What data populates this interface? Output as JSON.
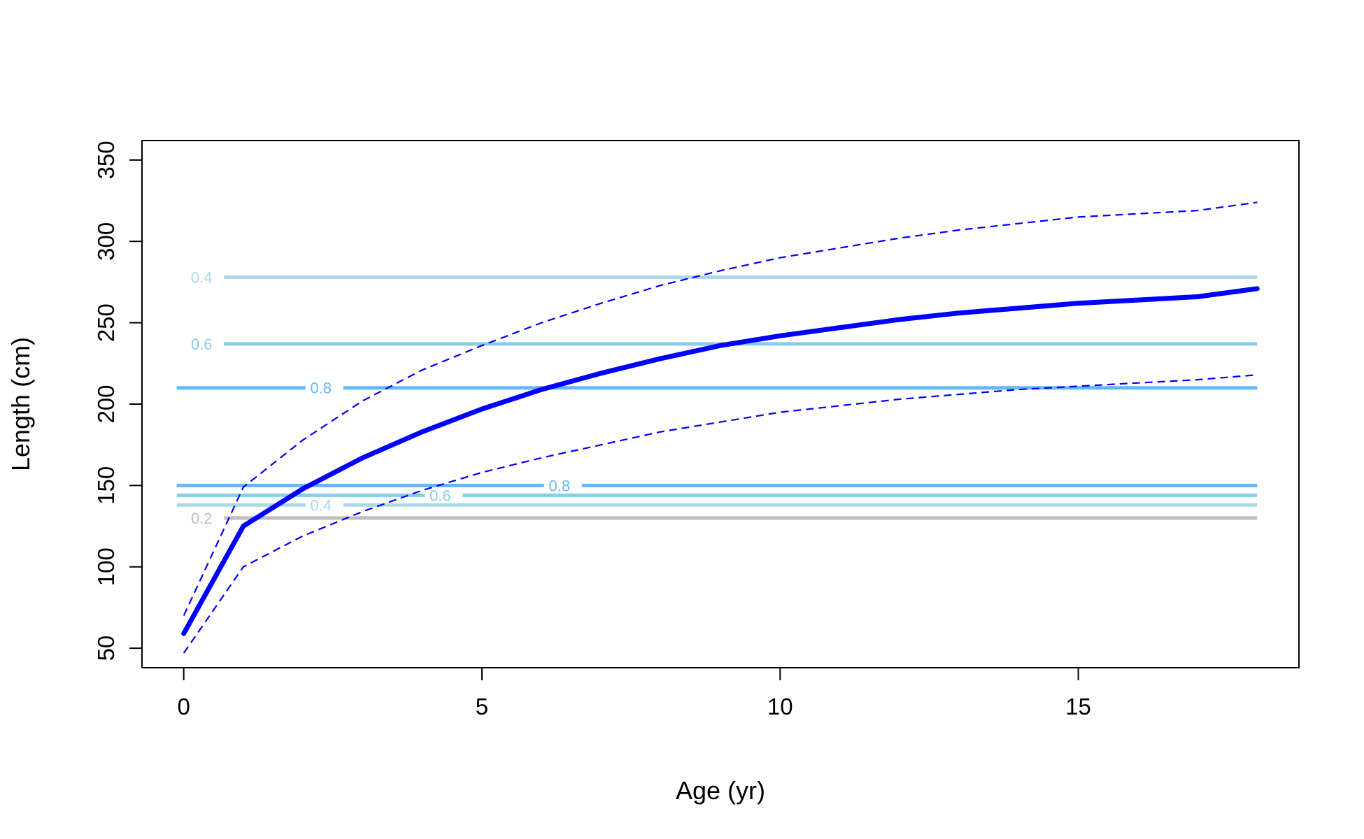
{
  "chart_data": {
    "type": "line",
    "title": "",
    "xlabel": "Age (yr)",
    "ylabel": "Length (cm)",
    "xlim": [
      -0.7,
      18.7
    ],
    "ylim": [
      38,
      362
    ],
    "xticks": [
      0,
      5,
      10,
      15
    ],
    "yticks": [
      50,
      100,
      150,
      200,
      250,
      300,
      350
    ],
    "grid": false,
    "legend": "none",
    "series": [
      {
        "role": "mean",
        "color": "#0000ff",
        "style": "solid-thick",
        "x": [
          0,
          1,
          2,
          3,
          4,
          5,
          6,
          7,
          8,
          9,
          10,
          11,
          12,
          13,
          14,
          15,
          16,
          17,
          18
        ],
        "y": [
          59,
          125,
          148,
          167,
          183,
          197,
          209,
          219,
          228,
          236,
          242,
          247,
          252,
          256,
          259,
          262,
          264,
          266,
          271
        ]
      },
      {
        "role": "upper-bound",
        "color": "#0000ff",
        "style": "dashed",
        "x": [
          0,
          1,
          2,
          3,
          4,
          5,
          6,
          7,
          8,
          9,
          10,
          11,
          12,
          13,
          14,
          15,
          16,
          17,
          18
        ],
        "y": [
          70,
          149,
          178,
          202,
          221,
          236,
          250,
          262,
          273,
          282,
          290,
          296,
          302,
          307,
          311,
          315,
          317,
          319,
          324
        ]
      },
      {
        "role": "lower-bound",
        "color": "#0000ff",
        "style": "dashed",
        "x": [
          0,
          1,
          2,
          3,
          4,
          5,
          6,
          7,
          8,
          9,
          10,
          11,
          12,
          13,
          14,
          15,
          16,
          17,
          18
        ],
        "y": [
          47,
          100,
          119,
          134,
          147,
          158,
          167,
          175,
          183,
          189,
          195,
          199,
          203,
          206,
          209,
          211,
          213,
          215,
          218
        ]
      }
    ],
    "contours": [
      {
        "level": "0.4",
        "y": 278,
        "color": "#add8e6",
        "label_x": 0.3
      },
      {
        "level": "0.6",
        "y": 237,
        "color": "#87ceeb",
        "label_x": 0.3
      },
      {
        "level": "0.8",
        "y": 210,
        "color": "#63b8ff",
        "label_x": 2.3
      },
      {
        "level": "0.8",
        "y": 150,
        "color": "#63b8ff",
        "label_x": 6.3
      },
      {
        "level": "0.6",
        "y": 144,
        "color": "#87ceeb",
        "label_x": 4.3
      },
      {
        "level": "0.4",
        "y": 138,
        "color": "#add8e6",
        "label_x": 2.3
      },
      {
        "level": "0.2",
        "y": 130,
        "color": "#bebebe",
        "label_x": 0.3
      }
    ]
  }
}
